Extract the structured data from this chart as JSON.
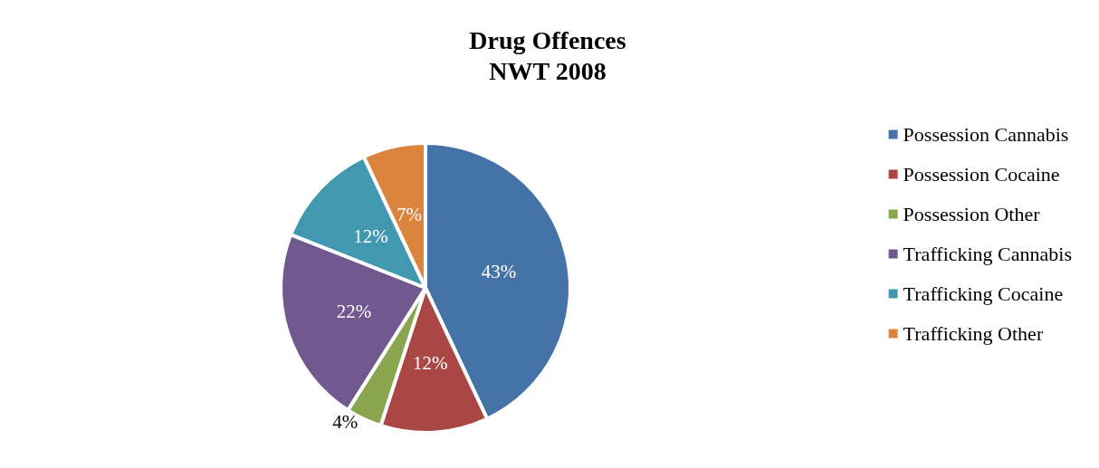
{
  "chart_data": {
    "type": "pie",
    "title": "Drug Offences\nNWT 2008",
    "categories": [
      "Possession Cannabis",
      "Possession Cocaine",
      "Possession Other",
      "Trafficking Cannabis",
      "Trafficking Cocaine",
      "Trafficking Other"
    ],
    "values": [
      43,
      12,
      4,
      22,
      12,
      7
    ],
    "colors": [
      "#4572a7",
      "#aa4643",
      "#89a54e",
      "#71588f",
      "#4198af",
      "#db843d"
    ],
    "value_labels": [
      "43%",
      "12%",
      "4%",
      "22%",
      "12%",
      "7%"
    ],
    "legend": "right"
  }
}
